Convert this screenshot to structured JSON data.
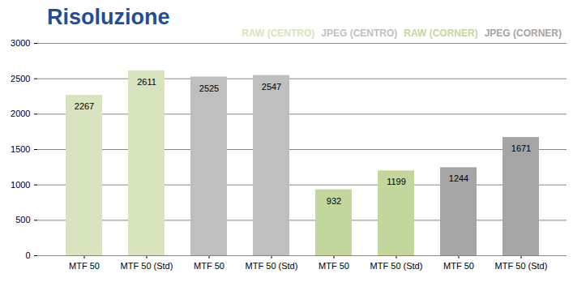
{
  "chart_data": {
    "type": "bar",
    "title": "Risoluzione",
    "categories": [
      "MTF 50",
      "MTF 50 (Std)",
      "MTF 50",
      "MTF 50 (Std)",
      "MTF 50",
      "MTF 50 (Std)",
      "MTF 50",
      "MTF 50 (Std)"
    ],
    "series": [
      {
        "name": "RAW (CENTRO)",
        "color": "#d7e4bd",
        "values": [
          2267,
          2611,
          null,
          null,
          null,
          null,
          null,
          null
        ]
      },
      {
        "name": "JPEG (CENTRO)",
        "color": "#bfbfbf",
        "values": [
          null,
          null,
          2525,
          2547,
          null,
          null,
          null,
          null
        ]
      },
      {
        "name": "RAW (CORNER)",
        "color": "#c3d69b",
        "values": [
          null,
          null,
          null,
          null,
          932,
          1199,
          null,
          null
        ]
      },
      {
        "name": "JPEG (CORNER)",
        "color": "#a5a5a5",
        "values": [
          null,
          null,
          null,
          null,
          null,
          null,
          1244,
          1671
        ]
      }
    ],
    "ylim": [
      0,
      3000
    ],
    "yticks": [
      0,
      500,
      1000,
      1500,
      2000,
      2500,
      3000
    ],
    "grid": true,
    "legend": "top-right",
    "data_labels": true
  }
}
